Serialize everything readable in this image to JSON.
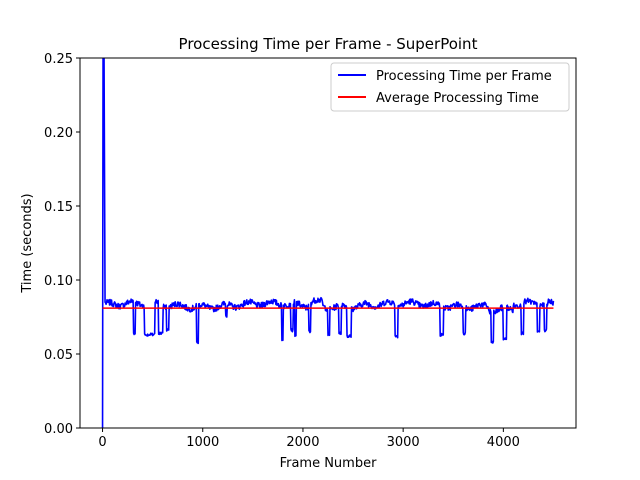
{
  "chart_data": {
    "type": "line",
    "title": "Processing Time per Frame - SuperPoint",
    "xlabel": "Frame Number",
    "ylabel": "Time (seconds)",
    "xlim": [
      -225,
      4725
    ],
    "ylim": [
      0,
      0.25
    ],
    "xticks": [
      0,
      1000,
      2000,
      3000,
      4000
    ],
    "yticks": [
      0.0,
      0.05,
      0.1,
      0.15,
      0.2,
      0.25
    ],
    "ytick_labels": [
      "0.00",
      "0.05",
      "0.10",
      "0.15",
      "0.20",
      "0.25"
    ],
    "grid": false,
    "legend_position": "top-right",
    "frame_count": 4500,
    "series": [
      {
        "name": "Processing Time per Frame",
        "color": "#0000ff",
        "baseline": 0.083,
        "startup_points": [
          {
            "x": 0,
            "y": 0.0
          },
          {
            "x": 5,
            "y": 0.25
          },
          {
            "x": 15,
            "y": 0.25
          },
          {
            "x": 25,
            "y": 0.085
          }
        ],
        "dips": [
          {
            "start": 310,
            "end": 325,
            "value": 0.064
          },
          {
            "start": 420,
            "end": 520,
            "value": 0.063
          },
          {
            "start": 560,
            "end": 600,
            "value": 0.064
          },
          {
            "start": 640,
            "end": 660,
            "value": 0.066
          },
          {
            "start": 940,
            "end": 955,
            "value": 0.058
          },
          {
            "start": 1230,
            "end": 1240,
            "value": 0.076
          },
          {
            "start": 1790,
            "end": 1800,
            "value": 0.06
          },
          {
            "start": 1880,
            "end": 1900,
            "value": 0.066
          },
          {
            "start": 1920,
            "end": 1930,
            "value": 0.062
          },
          {
            "start": 2060,
            "end": 2075,
            "value": 0.065
          },
          {
            "start": 2250,
            "end": 2265,
            "value": 0.063
          },
          {
            "start": 2360,
            "end": 2380,
            "value": 0.064
          },
          {
            "start": 2440,
            "end": 2480,
            "value": 0.062
          },
          {
            "start": 2920,
            "end": 2945,
            "value": 0.062
          },
          {
            "start": 3370,
            "end": 3400,
            "value": 0.063
          },
          {
            "start": 3600,
            "end": 3620,
            "value": 0.064
          },
          {
            "start": 3880,
            "end": 3900,
            "value": 0.058
          },
          {
            "start": 4000,
            "end": 4030,
            "value": 0.06
          },
          {
            "start": 4180,
            "end": 4200,
            "value": 0.064
          },
          {
            "start": 4340,
            "end": 4360,
            "value": 0.065
          },
          {
            "start": 4410,
            "end": 4430,
            "value": 0.066
          }
        ]
      },
      {
        "name": "Average Processing Time",
        "color": "#ff0000",
        "x": [
          0,
          4500
        ],
        "y": [
          0.081,
          0.081
        ]
      }
    ]
  }
}
